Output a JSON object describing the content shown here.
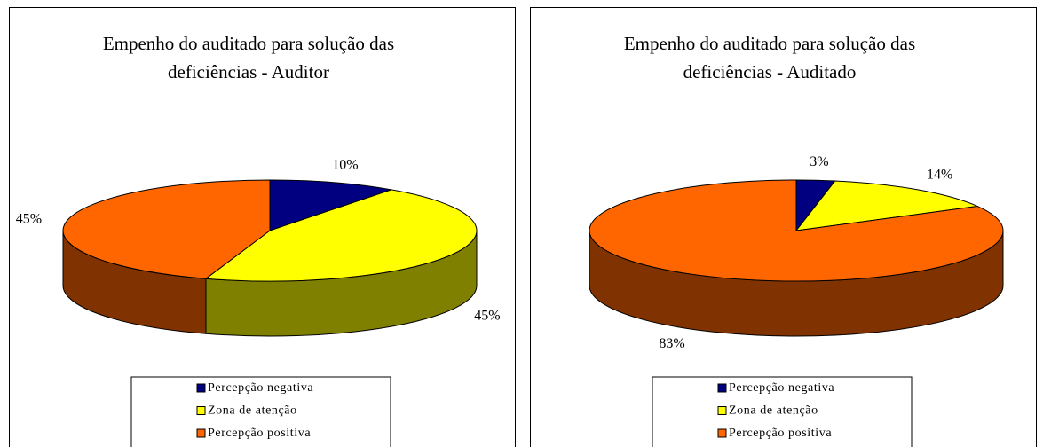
{
  "chart_data": [
    {
      "type": "pie",
      "title": [
        "Empenho do auditado para solução das",
        "deficiências -  Auditor"
      ],
      "categories": [
        "Percepção negativa",
        "Zona de atenção",
        "Percepção positiva"
      ],
      "values": [
        10,
        45,
        45
      ],
      "value_labels": [
        "10%",
        "45%",
        "45%"
      ],
      "colors": [
        "#000080",
        "#ffff00",
        "#ff6600"
      ],
      "legend": "bottom"
    },
    {
      "type": "pie",
      "title": [
        "Empenho do auditado para solução das",
        "deficiências -  Auditado"
      ],
      "categories": [
        "Percepção negativa",
        "Zona de atenção",
        "Percepção positiva"
      ],
      "values": [
        3,
        14,
        83
      ],
      "value_labels": [
        "3%",
        "14%",
        "83%"
      ],
      "colors": [
        "#000080",
        "#ffff00",
        "#ff6600"
      ],
      "legend": "bottom"
    }
  ]
}
